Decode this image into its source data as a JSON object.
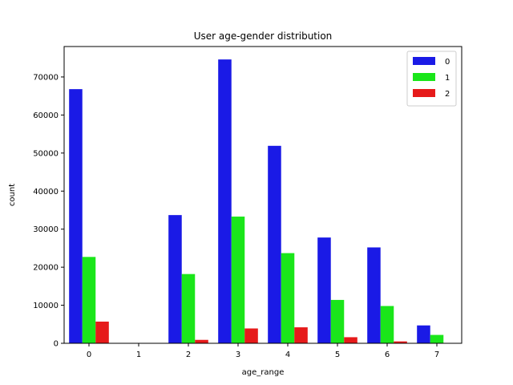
{
  "chart_data": {
    "type": "bar",
    "title": "User age-gender distribution",
    "xlabel": "age_range",
    "ylabel": "count",
    "categories": [
      "0",
      "1",
      "2",
      "3",
      "4",
      "5",
      "6",
      "7"
    ],
    "ylim": [
      0,
      78000
    ],
    "yticks": [
      0,
      10000,
      20000,
      30000,
      40000,
      50000,
      60000,
      70000
    ],
    "legend_position": "top-right",
    "series": [
      {
        "name": "0",
        "color": "#1a1ae6",
        "values": [
          66800,
          0,
          33700,
          74600,
          51900,
          27800,
          25200,
          4700
        ]
      },
      {
        "name": "1",
        "color": "#1ae61a",
        "values": [
          22700,
          0,
          18200,
          33300,
          23700,
          11400,
          9800,
          2200
        ]
      },
      {
        "name": "2",
        "color": "#e61a1a",
        "values": [
          5700,
          0,
          900,
          3900,
          4200,
          1600,
          500,
          0
        ]
      }
    ]
  }
}
